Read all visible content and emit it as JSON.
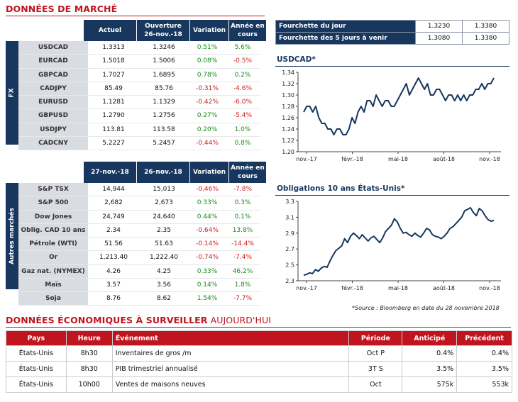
{
  "market_title": "DONNÉES DE MARCHÉ",
  "fx": {
    "side_label": "FX",
    "headers": [
      "Actuel",
      "Ouverture 26-nov.-18",
      "Variation",
      "Année en cours"
    ],
    "rows": [
      {
        "name": "USDCAD",
        "actuel": "1.3313",
        "ouverture": "1.3246",
        "variation": "0.51%",
        "annee": "5.6%"
      },
      {
        "name": "EURCAD",
        "actuel": "1.5018",
        "ouverture": "1.5006",
        "variation": "0.08%",
        "annee": "-0.5%"
      },
      {
        "name": "GBPCAD",
        "actuel": "1.7027",
        "ouverture": "1.6895",
        "variation": "0.78%",
        "annee": "0.2%"
      },
      {
        "name": "CADJPY",
        "actuel": "85.49",
        "ouverture": "85.76",
        "variation": "-0.31%",
        "annee": "-4.6%"
      },
      {
        "name": "EURUSD",
        "actuel": "1.1281",
        "ouverture": "1.1329",
        "variation": "-0.42%",
        "annee": "-6.0%"
      },
      {
        "name": "GBPUSD",
        "actuel": "1.2790",
        "ouverture": "1.2756",
        "variation": "0.27%",
        "annee": "-5.4%"
      },
      {
        "name": "USDJPY",
        "actuel": "113.81",
        "ouverture": "113.58",
        "variation": "0.20%",
        "annee": "1.0%"
      },
      {
        "name": "CADCNY",
        "actuel": "5.2227",
        "ouverture": "5.2457",
        "variation": "-0.44%",
        "annee": "0.8%"
      }
    ]
  },
  "other": {
    "side_label": "Autres marchés",
    "headers": [
      "27-nov.-18",
      "26-nov.-18",
      "Variation",
      "Année en cours"
    ],
    "rows": [
      {
        "name": "S&P TSX",
        "actuel": "14,944",
        "ouverture": "15,013",
        "variation": "-0.46%",
        "annee": "-7.8%"
      },
      {
        "name": "S&P 500",
        "actuel": "2,682",
        "ouverture": "2,673",
        "variation": "0.33%",
        "annee": "0.3%"
      },
      {
        "name": "Dow Jones",
        "actuel": "24,749",
        "ouverture": "24,640",
        "variation": "0.44%",
        "annee": "0.1%"
      },
      {
        "name": "Oblig. CAD 10 ans",
        "actuel": "2.34",
        "ouverture": "2.35",
        "variation": "-0.64%",
        "annee": "13.8%"
      },
      {
        "name": "Pétrole (WTI)",
        "actuel": "51.56",
        "ouverture": "51.63",
        "variation": "-0.14%",
        "annee": "-14.4%"
      },
      {
        "name": "Or",
        "actuel": "1,213.40",
        "ouverture": "1,222.40",
        "variation": "-0.74%",
        "annee": "-7.4%"
      },
      {
        "name": "Gaz nat. (NYMEX)",
        "actuel": "4.26",
        "ouverture": "4.25",
        "variation": "0.33%",
        "annee": "46.2%"
      },
      {
        "name": "Maïs",
        "actuel": "3.57",
        "ouverture": "3.56",
        "variation": "0.14%",
        "annee": "1.8%"
      },
      {
        "name": "Soja",
        "actuel": "8.76",
        "ouverture": "8.62",
        "variation": "1.54%",
        "annee": "-7.7%"
      }
    ]
  },
  "ranges": [
    {
      "label": "Fourchette du jour",
      "low": "1.3230",
      "high": "1.3380"
    },
    {
      "label": "Fourchette des 5 jours à venir",
      "low": "1.3080",
      "high": "1.3380"
    }
  ],
  "chart_data": [
    {
      "type": "line",
      "title": "USDCAD*",
      "x_ticks": [
        "nov.-17",
        "févr.-18",
        "mai-18",
        "août-18",
        "nov.-18"
      ],
      "ylim": [
        1.2,
        1.34
      ],
      "y_ticks": [
        "1.20",
        "1.22",
        "1.24",
        "1.26",
        "1.28",
        "1.30",
        "1.32",
        "1.34"
      ],
      "color": "#17375e",
      "series": [
        {
          "values": [
            1.27,
            1.28,
            1.28,
            1.27,
            1.28,
            1.26,
            1.25,
            1.25,
            1.24,
            1.24,
            1.23,
            1.24,
            1.24,
            1.23,
            1.23,
            1.24,
            1.26,
            1.25,
            1.27,
            1.28,
            1.27,
            1.29,
            1.29,
            1.28,
            1.3,
            1.29,
            1.28,
            1.29,
            1.29,
            1.28,
            1.28,
            1.29,
            1.3,
            1.31,
            1.32,
            1.3,
            1.31,
            1.32,
            1.33,
            1.32,
            1.31,
            1.32,
            1.3,
            1.3,
            1.31,
            1.31,
            1.3,
            1.29,
            1.3,
            1.3,
            1.29,
            1.3,
            1.29,
            1.3,
            1.29,
            1.3,
            1.3,
            1.31,
            1.31,
            1.32,
            1.31,
            1.32,
            1.32,
            1.33
          ]
        }
      ]
    },
    {
      "type": "line",
      "title": "Obligations 10 ans États-Unis*",
      "x_ticks": [
        "nov.-17",
        "févr.-18",
        "mai-18",
        "août-18",
        "nov.-18"
      ],
      "ylim": [
        2.3,
        3.3
      ],
      "y_ticks": [
        "2.3",
        "2.5",
        "2.7",
        "2.9",
        "3.1",
        "3.3"
      ],
      "color": "#17375e",
      "series": [
        {
          "values": [
            2.37,
            2.38,
            2.4,
            2.39,
            2.44,
            2.42,
            2.46,
            2.48,
            2.47,
            2.55,
            2.62,
            2.68,
            2.71,
            2.74,
            2.83,
            2.78,
            2.86,
            2.9,
            2.87,
            2.83,
            2.88,
            2.84,
            2.8,
            2.84,
            2.86,
            2.82,
            2.78,
            2.84,
            2.92,
            2.96,
            3.0,
            3.08,
            3.04,
            2.96,
            2.9,
            2.91,
            2.88,
            2.86,
            2.9,
            2.87,
            2.85,
            2.9,
            2.96,
            2.94,
            2.88,
            2.86,
            2.85,
            2.83,
            2.86,
            2.9,
            2.96,
            2.98,
            3.02,
            3.06,
            3.1,
            3.18,
            3.2,
            3.22,
            3.16,
            3.12,
            3.21,
            3.18,
            3.12,
            3.07,
            3.05,
            3.06
          ]
        }
      ]
    }
  ],
  "source_note": "*Source : Bloomberg en date du  28 novembre 2018",
  "eco": {
    "title_bold": "DONNÉES ÉCONOMIQUES À SURVEILLER",
    "title_rest": " AUJOURD'HUI",
    "headers": [
      "Pays",
      "Heure",
      "Événement",
      "Période",
      "Anticipé",
      "Précédent"
    ],
    "rows": [
      {
        "pays": "États-Unis",
        "heure": "8h30",
        "evenement": "Inventaires de gros /m",
        "periode": "Oct P",
        "anticipe": "0.4%",
        "precedent": "0.4%"
      },
      {
        "pays": "États-Unis",
        "heure": "8h30",
        "evenement": "PIB trimestriel annualisé",
        "periode": "3T S",
        "anticipe": "3.5%",
        "precedent": "3.5%"
      },
      {
        "pays": "États-Unis",
        "heure": "10h00",
        "evenement": "Ventes de maisons neuves",
        "periode": "Oct",
        "anticipe": "575k",
        "precedent": "553k"
      }
    ]
  }
}
